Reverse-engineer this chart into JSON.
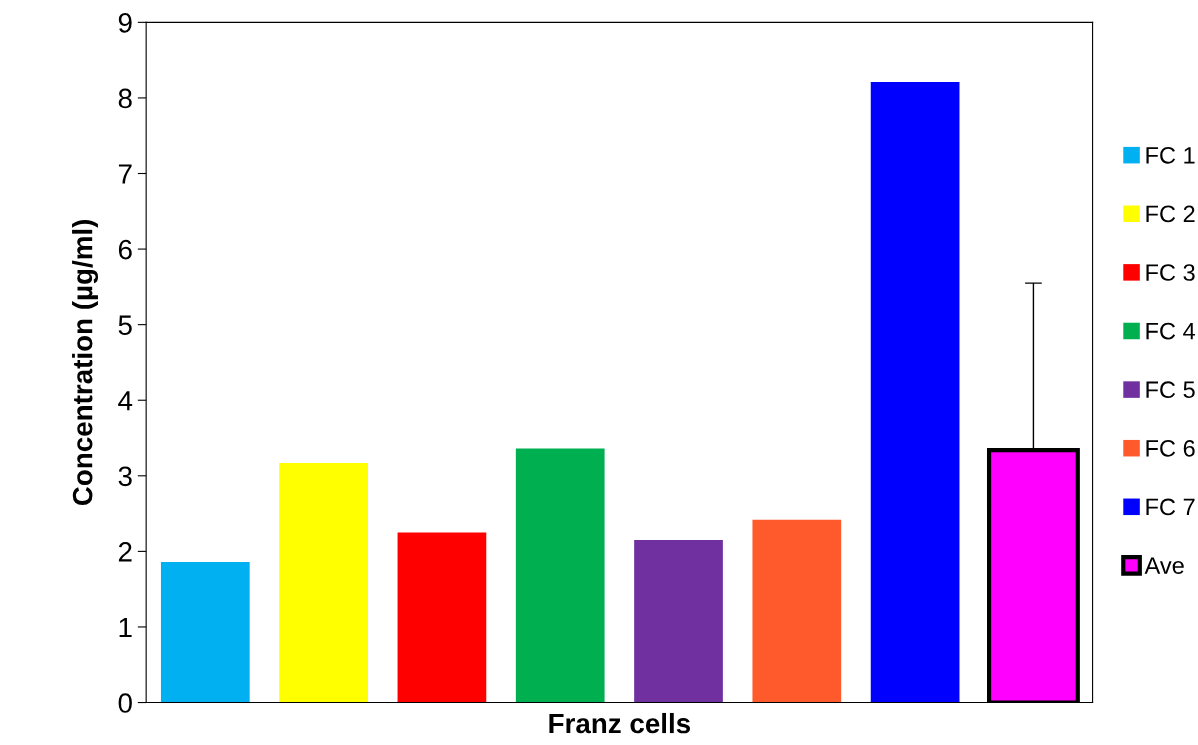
{
  "chart_data": {
    "type": "bar",
    "xlabel": "Franz cells",
    "ylabel": "Concentration (µg/ml)",
    "categories": [
      null,
      null,
      null,
      null,
      null,
      null,
      null,
      null
    ],
    "series": [
      {
        "name": "FC 1",
        "color": "#00b0f0",
        "values": [
          1.86,
          null,
          null,
          null,
          null,
          null,
          null,
          null
        ]
      },
      {
        "name": "FC 2",
        "color": "#ffff00",
        "values": [
          null,
          3.17,
          null,
          null,
          null,
          null,
          null,
          null
        ]
      },
      {
        "name": "FC 3",
        "color": "#ff0000",
        "values": [
          null,
          null,
          2.25,
          null,
          null,
          null,
          null,
          null
        ]
      },
      {
        "name": "FC 4",
        "color": "#00b050",
        "values": [
          null,
          null,
          null,
          3.36,
          null,
          null,
          null,
          null
        ]
      },
      {
        "name": "FC 5",
        "color": "#7030a0",
        "values": [
          null,
          null,
          null,
          null,
          2.15,
          null,
          null,
          null
        ]
      },
      {
        "name": "FC 6",
        "color": "#ff5a2b",
        "values": [
          null,
          null,
          null,
          null,
          null,
          2.42,
          null,
          null
        ]
      },
      {
        "name": "FC 7",
        "color": "#0000ff",
        "values": [
          null,
          null,
          null,
          null,
          null,
          null,
          8.21,
          null
        ]
      },
      {
        "name": "Ave",
        "color": "#ff00ff",
        "values": [
          null,
          null,
          null,
          null,
          null,
          null,
          null,
          3.34
        ],
        "errors": [
          null,
          null,
          null,
          null,
          null,
          null,
          null,
          [
            3.34,
            5.55
          ]
        ]
      }
    ],
    "ylim": [
      0,
      9
    ],
    "yticks": [
      0,
      1,
      2,
      3,
      4,
      5,
      6,
      7,
      8,
      9
    ],
    "grid": false,
    "legend": "right",
    "tick_labels": "y"
  }
}
